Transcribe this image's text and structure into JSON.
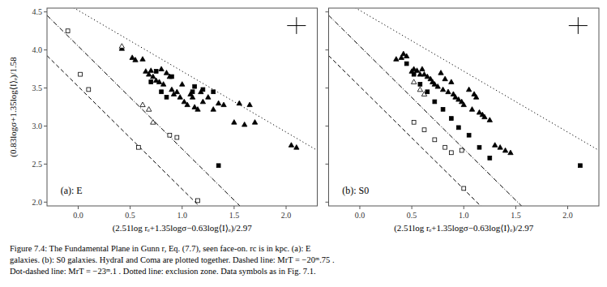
{
  "chart_data": [
    {
      "type": "scatter",
      "xlabel": "(2.51log  rₑ+1.35logσ−0.63log⟨I⟩ₑ)/2.97",
      "ylabel": "(0.83logσ+1.35log⟨I⟩ₑ)/1.58",
      "annotations": [
        "(a): E"
      ],
      "caption": [
        "Figure 7.4:  The Fundamental Plane in Gunn r, Eq. (7.7), seen face-on.  rc is in kpc.  (a): E",
        "galaxies. (b): S0 galaxies. HydraI and Coma are plotted together. Dashed line: MrT = −20ᵐ.75 .",
        "Dot-dashed line: MrT = −23ᵐ.1 . Dotted line: exclusion zone. Data symbols as in Fig. 7.1."
      ],
      "xlim": [
        -0.3,
        2.3
      ],
      "ylim": [
        1.95,
        4.55
      ],
      "xticks": [
        {
          "value": 0,
          "label": "0.0"
        },
        {
          "value": 0.5,
          "label": "0.5"
        },
        {
          "value": 1.0,
          "label": "1.0"
        },
        {
          "value": 1.5,
          "label": "1.5"
        },
        {
          "value": 2.0,
          "label": "2.0"
        }
      ],
      "yticks": [
        {
          "value": 2.0,
          "label": "2.0"
        },
        {
          "value": 2.5,
          "label": "2.5"
        },
        {
          "value": 3.0,
          "label": "3.0"
        },
        {
          "value": 3.5,
          "label": "3.5"
        },
        {
          "value": 4.0,
          "label": "4.0"
        },
        {
          "value": 4.5,
          "label": "4.5"
        }
      ],
      "grid": false,
      "series": [
        {
          "type": "line",
          "intercept": 3.52,
          "slope": -1.35,
          "line_style": "dashed",
          "color": "#000000"
        },
        {
          "type": "line",
          "intercept": 4.05,
          "slope": -1.35,
          "line_style": "dashdot",
          "color": "#000000"
        },
        {
          "type": "line",
          "intercept": 4.52,
          "slope": -0.8,
          "line_style": "dotted",
          "color": "#000000"
        },
        {
          "type": "scatter",
          "marker": "triangle",
          "color": "#000000",
          "x": [
            0.42,
            0.52,
            0.55,
            0.62,
            0.65,
            0.68,
            0.7,
            0.72,
            0.75,
            0.78,
            0.8,
            0.82,
            0.85,
            0.88,
            0.9,
            0.92,
            0.95,
            0.98,
            1.0,
            1.02,
            1.05,
            1.08,
            1.1,
            1.12,
            1.15,
            1.18,
            1.2,
            1.25,
            1.3,
            1.35,
            1.4,
            1.5,
            1.55,
            1.6,
            1.65,
            1.7,
            2.05,
            2.1
          ],
          "values": [
            4.02,
            3.9,
            3.87,
            3.88,
            3.72,
            3.68,
            3.73,
            3.65,
            3.6,
            3.58,
            3.75,
            3.55,
            3.7,
            3.65,
            3.48,
            3.42,
            3.45,
            3.38,
            3.55,
            3.32,
            3.28,
            3.42,
            3.38,
            3.25,
            3.22,
            3.45,
            3.32,
            3.38,
            3.22,
            3.3,
            3.28,
            3.05,
            3.3,
            3.02,
            3.28,
            3.05,
            2.75,
            2.72
          ]
        },
        {
          "type": "scatter",
          "marker": "triangle",
          "color": "#ffffff",
          "x": [
            0.42,
            0.62,
            0.68,
            0.72
          ],
          "values": [
            4.05,
            3.28,
            3.22,
            3.05
          ]
        },
        {
          "type": "scatter",
          "marker": "square",
          "color": "#000000",
          "x": [
            0.7,
            0.75,
            0.8,
            0.85,
            0.9,
            1.1,
            1.12,
            1.2,
            1.3,
            1.35
          ],
          "values": [
            3.58,
            3.72,
            3.45,
            3.38,
            3.65,
            3.45,
            3.52,
            3.48,
            3.45,
            2.48
          ]
        },
        {
          "type": "scatter",
          "marker": "square",
          "color": "#ffffff",
          "x": [
            -0.1,
            0.02,
            0.1,
            0.58,
            0.88,
            0.95,
            1.15
          ],
          "values": [
            4.25,
            3.68,
            3.48,
            2.72,
            2.88,
            2.85,
            2.02
          ]
        },
        {
          "type": "errorbar",
          "color": "#000000",
          "x": [
            2.1
          ],
          "values": [
            4.32
          ],
          "x_error": [
            0.09
          ],
          "y_error": [
            0.11
          ]
        }
      ]
    },
    {
      "type": "scatter",
      "xlabel": "(2.51log  rₑ+1.35logσ−0.63log⟨I⟩ₑ)/2.97",
      "annotations": [
        "(b): S0"
      ],
      "tick_labels": "x",
      "xlim": [
        -0.3,
        2.3
      ],
      "ylim": [
        1.95,
        4.55
      ],
      "xticks": [
        {
          "value": 0,
          "label": "0.0"
        },
        {
          "value": 0.5,
          "label": "0.5"
        },
        {
          "value": 1.0,
          "label": "1.0"
        },
        {
          "value": 1.5,
          "label": "1.5"
        },
        {
          "value": 2.0,
          "label": "2.0"
        }
      ],
      "yticks": [
        2.0,
        2.5,
        3.0,
        3.5,
        4.0,
        4.5
      ],
      "grid": false,
      "series": [
        {
          "type": "line",
          "intercept": 3.52,
          "slope": -1.35,
          "line_style": "dashed",
          "color": "#000000"
        },
        {
          "type": "line",
          "intercept": 4.05,
          "slope": -1.35,
          "line_style": "dashdot",
          "color": "#000000"
        },
        {
          "type": "line",
          "intercept": 4.52,
          "slope": -0.8,
          "line_style": "dotted",
          "color": "#000000"
        },
        {
          "type": "scatter",
          "marker": "triangle",
          "color": "#000000",
          "x": [
            0.35,
            0.4,
            0.42,
            0.45,
            0.5,
            0.52,
            0.55,
            0.58,
            0.6,
            0.62,
            0.65,
            0.68,
            0.7,
            0.72,
            0.75,
            0.78,
            0.8,
            0.82,
            0.85,
            0.88,
            0.9,
            0.92,
            0.95,
            0.98,
            1.0,
            1.05,
            1.08,
            1.1,
            1.12,
            1.15,
            1.18,
            1.2,
            1.25,
            1.3,
            1.35,
            1.4,
            1.45
          ],
          "values": [
            3.88,
            3.9,
            3.95,
            3.92,
            3.72,
            3.75,
            3.73,
            3.68,
            3.75,
            3.68,
            3.65,
            3.62,
            3.58,
            3.55,
            3.52,
            3.7,
            3.48,
            3.62,
            3.45,
            3.58,
            3.42,
            3.38,
            3.35,
            3.32,
            3.28,
            3.48,
            3.22,
            3.42,
            3.38,
            3.18,
            3.15,
            3.12,
            3.08,
            2.75,
            2.72,
            2.68,
            2.65
          ]
        },
        {
          "type": "scatter",
          "marker": "triangle",
          "color": "#ffffff",
          "x": [
            0.52,
            0.58,
            0.62
          ],
          "values": [
            3.58,
            3.48,
            3.42
          ]
        },
        {
          "type": "scatter",
          "marker": "square",
          "color": "#000000",
          "x": [
            0.45,
            0.52,
            0.58,
            0.65,
            0.72,
            0.8,
            0.88,
            0.95,
            1.05,
            1.15,
            1.25,
            2.12
          ],
          "values": [
            3.82,
            3.68,
            3.55,
            3.45,
            3.32,
            3.22,
            3.1,
            2.98,
            2.88,
            2.72,
            2.58,
            2.48
          ]
        },
        {
          "type": "scatter",
          "marker": "square",
          "color": "#ffffff",
          "x": [
            0.52,
            0.62,
            0.72,
            0.82,
            0.88,
            0.98,
            1.0
          ],
          "values": [
            3.05,
            2.95,
            2.82,
            2.72,
            2.65,
            2.68,
            2.18
          ]
        },
        {
          "type": "errorbar",
          "color": "#000000",
          "x": [
            2.1
          ],
          "values": [
            4.32
          ],
          "x_error": [
            0.09
          ],
          "y_error": [
            0.11
          ]
        }
      ]
    }
  ]
}
